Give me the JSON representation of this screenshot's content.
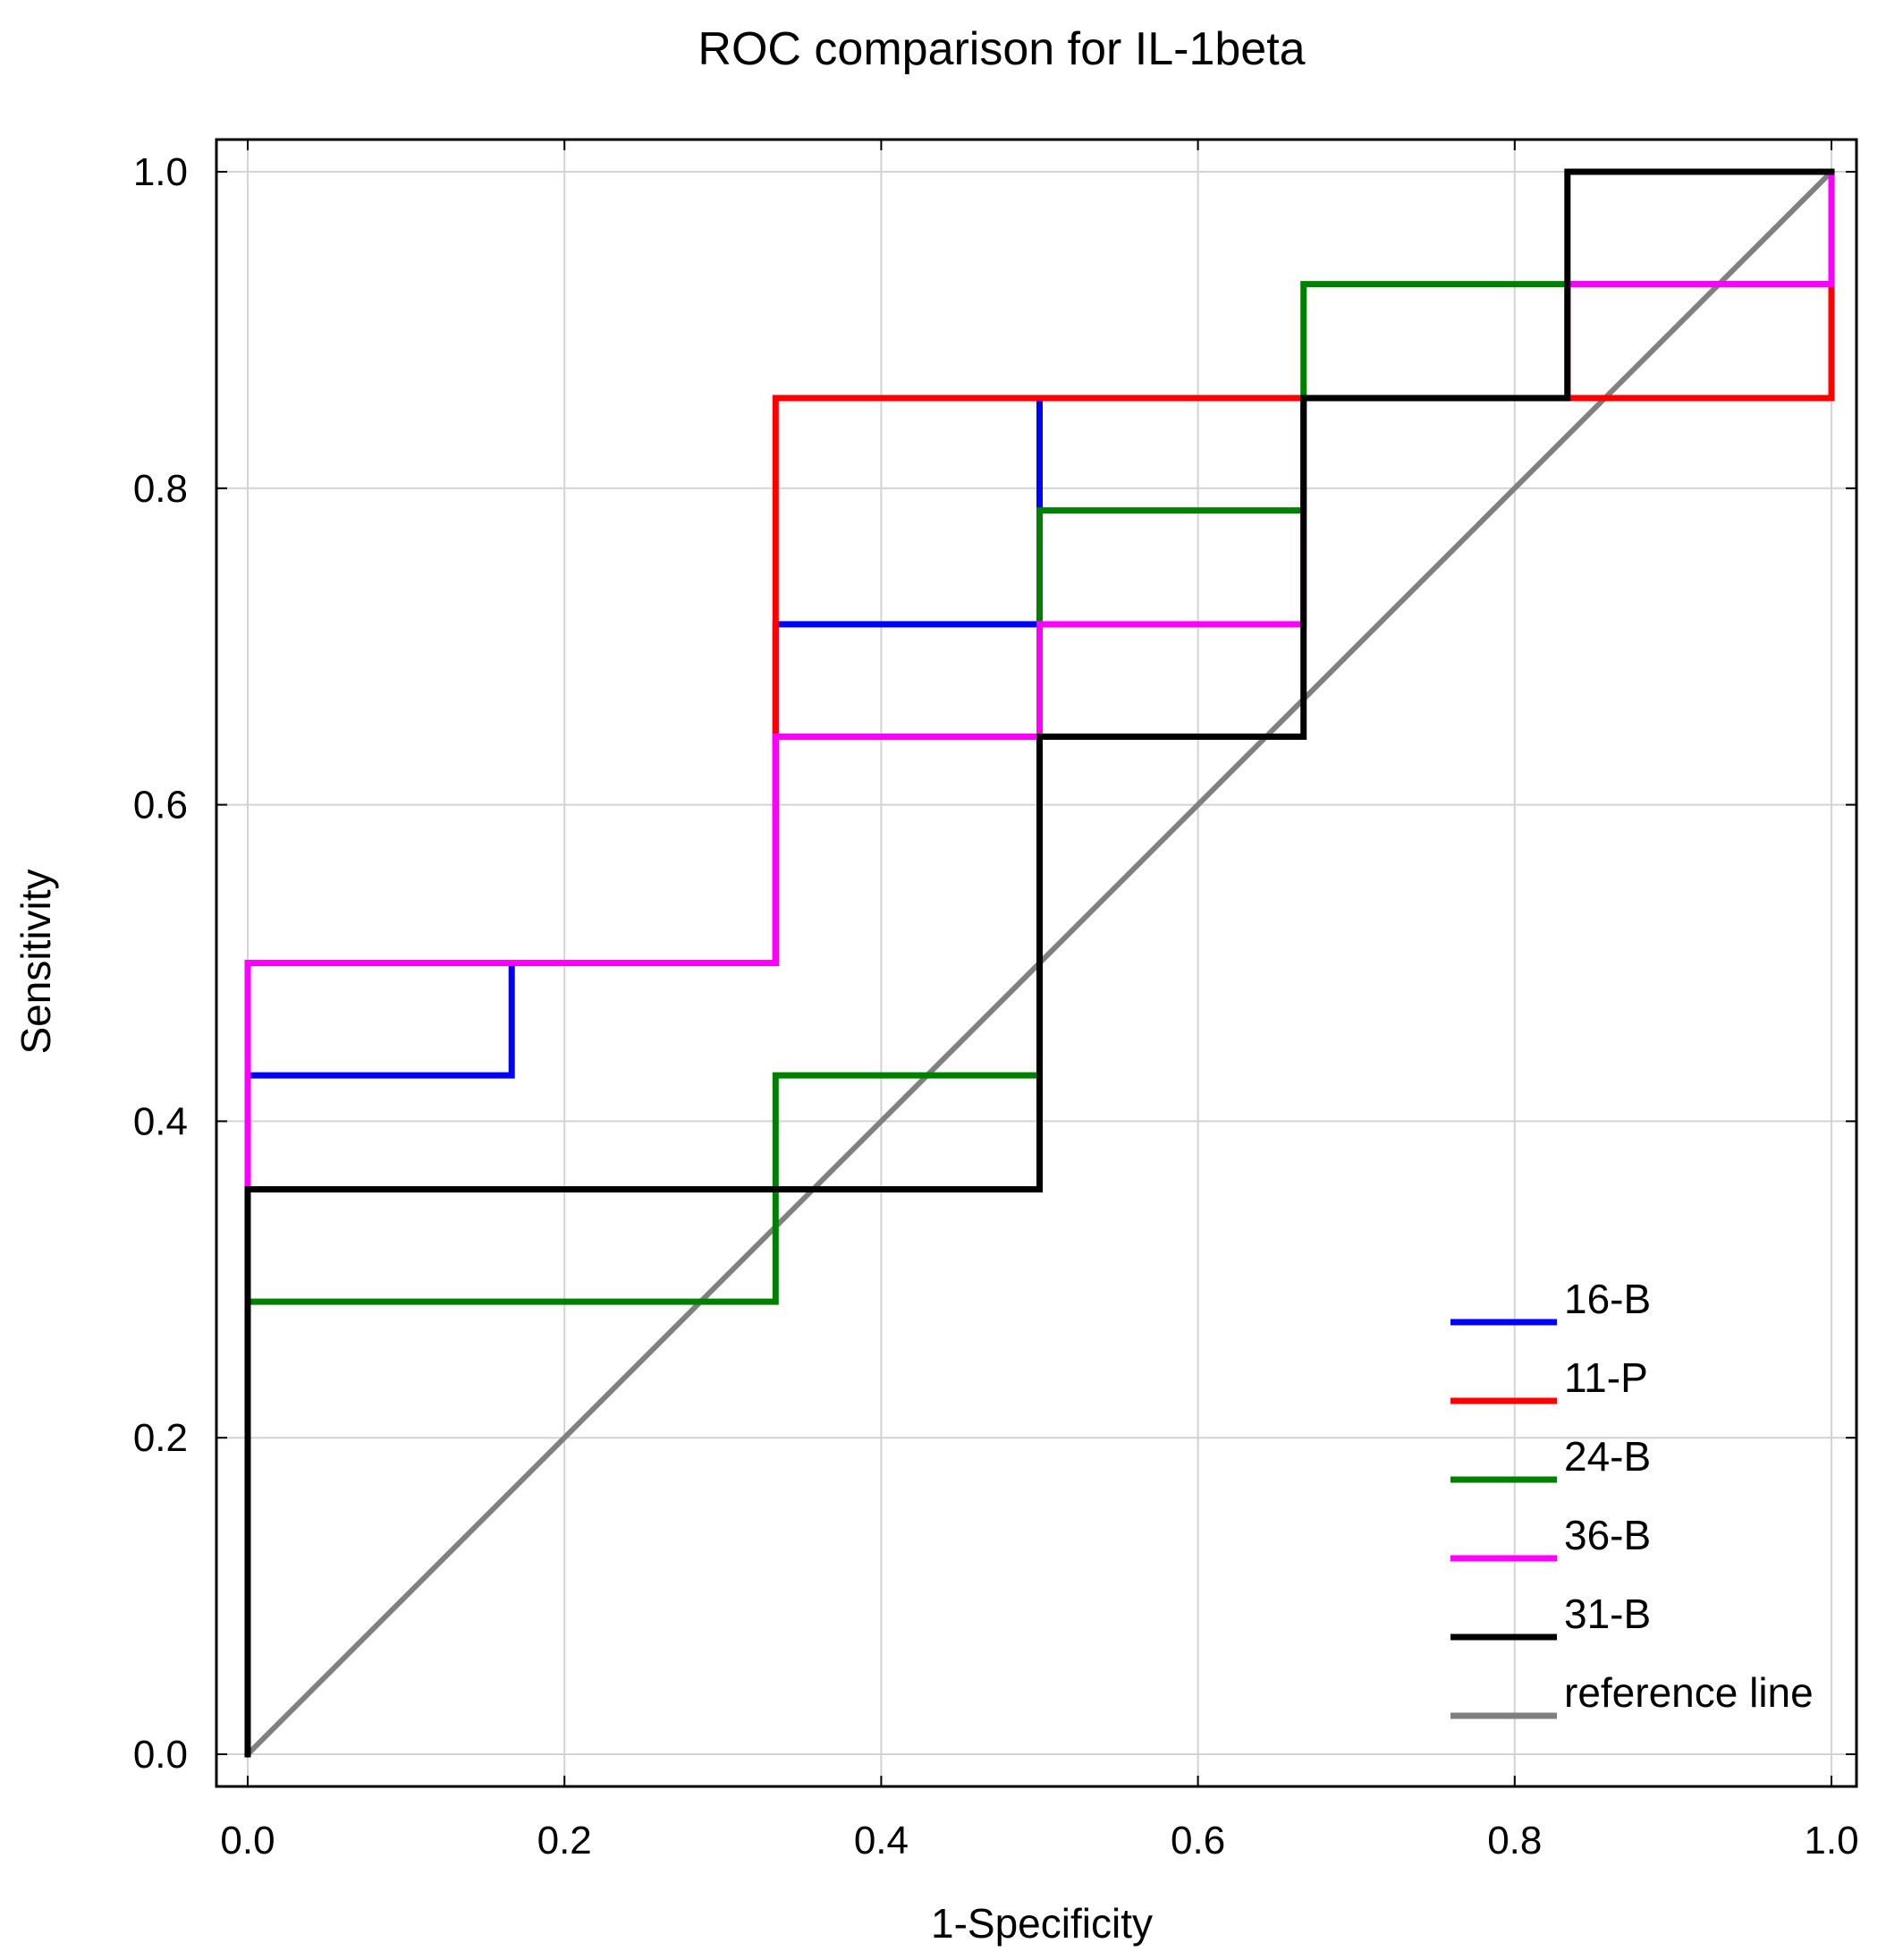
{
  "chart_data": {
    "type": "line",
    "title": "ROC comparison for IL-1beta",
    "xlabel": "1-Specificity",
    "ylabel": "Sensitivity",
    "xlim": [
      -0.04,
      1.04
    ],
    "ylim": [
      -0.04,
      1.04
    ],
    "grid": true,
    "legend_position": "bottom-right",
    "x_ticks": [
      "0.0",
      "0.2",
      "0.4",
      "0.6",
      "0.8",
      "1.0"
    ],
    "y_ticks": [
      "0.0",
      "0.2",
      "0.4",
      "0.6",
      "0.8",
      "1.0"
    ],
    "series": [
      {
        "name": "reference line",
        "color": "#808080",
        "x": [
          0,
          1
        ],
        "y": [
          0,
          1
        ]
      },
      {
        "name": "16-B",
        "color": "#0000ff",
        "x": [
          0,
          0,
          0,
          0.1667,
          0.1667,
          0.3333,
          0.3333,
          0.5,
          0.5,
          0.6667,
          0.6667,
          0.8333,
          0.8333,
          1,
          1
        ],
        "y": [
          0,
          0.357,
          0.429,
          0.429,
          0.5,
          0.5,
          0.714,
          0.714,
          0.857,
          0.857,
          0.857,
          0.857,
          0.857,
          0.857,
          1
        ]
      },
      {
        "name": "11-P",
        "color": "#ff0000",
        "x": [
          0,
          0,
          0,
          0.3333,
          0.3333,
          0.6667,
          0.8333,
          1,
          1
        ],
        "y": [
          0,
          0.357,
          0.5,
          0.5,
          0.857,
          0.857,
          0.857,
          0.857,
          1
        ]
      },
      {
        "name": "24-B",
        "color": "#008000",
        "x": [
          0,
          0,
          0.3333,
          0.3333,
          0.5,
          0.5,
          0.6667,
          0.6667,
          1,
          1
        ],
        "y": [
          0,
          0.286,
          0.286,
          0.429,
          0.429,
          0.786,
          0.786,
          0.929,
          0.929,
          1
        ]
      },
      {
        "name": "36-B",
        "color": "#ff00ff",
        "x": [
          0,
          0,
          0,
          0.3333,
          0.3333,
          0.5,
          0.5,
          0.6667,
          0.6667,
          0.8333,
          0.8333,
          1,
          1
        ],
        "y": [
          0,
          0.357,
          0.5,
          0.5,
          0.643,
          0.643,
          0.714,
          0.714,
          0.857,
          0.857,
          0.929,
          0.929,
          1
        ]
      },
      {
        "name": "31-B",
        "color": "#000000",
        "x": [
          0,
          0,
          0.5,
          0.5,
          0.6667,
          0.6667,
          0.8333,
          0.8333,
          1
        ],
        "y": [
          0,
          0.357,
          0.357,
          0.643,
          0.643,
          0.857,
          0.857,
          1,
          1
        ]
      }
    ],
    "legend_order": [
      "16-B",
      "11-P",
      "24-B",
      "36-B",
      "31-B",
      "reference line"
    ]
  }
}
